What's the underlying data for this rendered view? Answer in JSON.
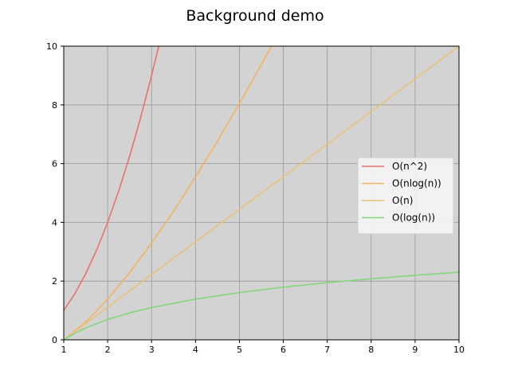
{
  "chart_data": {
    "type": "line",
    "title": "Background demo",
    "xlabel": "",
    "ylabel": "",
    "xlim": [
      1,
      10
    ],
    "ylim": [
      0,
      10
    ],
    "xticks": [
      1,
      2,
      3,
      4,
      5,
      6,
      7,
      8,
      9,
      10
    ],
    "yticks": [
      0,
      2,
      4,
      6,
      8,
      10
    ],
    "grid": true,
    "background": "#d3d3d3",
    "grid_color": "#999999",
    "legend_position": "center-right",
    "series": [
      {
        "name": "O(n^2)",
        "color": "#e8716f",
        "x": [
          1.0,
          1.25,
          1.5,
          1.75,
          2.0,
          2.25,
          2.5,
          2.75,
          3.0,
          3.1623
        ],
        "y": [
          1.0,
          1.5625,
          2.25,
          3.0625,
          4.0,
          5.0625,
          6.25,
          7.5625,
          9.0,
          10.0
        ]
      },
      {
        "name": "O(nlog(n))",
        "color": "#f3b162",
        "x": [
          1.0,
          1.5,
          2.0,
          2.5,
          3.0,
          3.5,
          4.0,
          4.5,
          5.0,
          5.5,
          5.73
        ],
        "y": [
          0.0,
          0.608,
          1.386,
          2.291,
          3.296,
          4.385,
          5.545,
          6.768,
          8.047,
          9.376,
          10.0
        ]
      },
      {
        "name": "O(n)",
        "color": "#e8c27a",
        "x": [
          1,
          10
        ],
        "y": [
          0,
          10
        ]
      },
      {
        "name": "O(log(n))",
        "color": "#82d67c",
        "x": [
          1.0,
          1.25,
          1.5,
          2.0,
          2.5,
          3.0,
          4.0,
          5.0,
          6.0,
          7.0,
          8.0,
          9.0,
          10.0
        ],
        "y": [
          0.0,
          0.223,
          0.405,
          0.693,
          0.916,
          1.099,
          1.386,
          1.609,
          1.792,
          1.946,
          2.079,
          2.197,
          2.303
        ]
      }
    ]
  }
}
